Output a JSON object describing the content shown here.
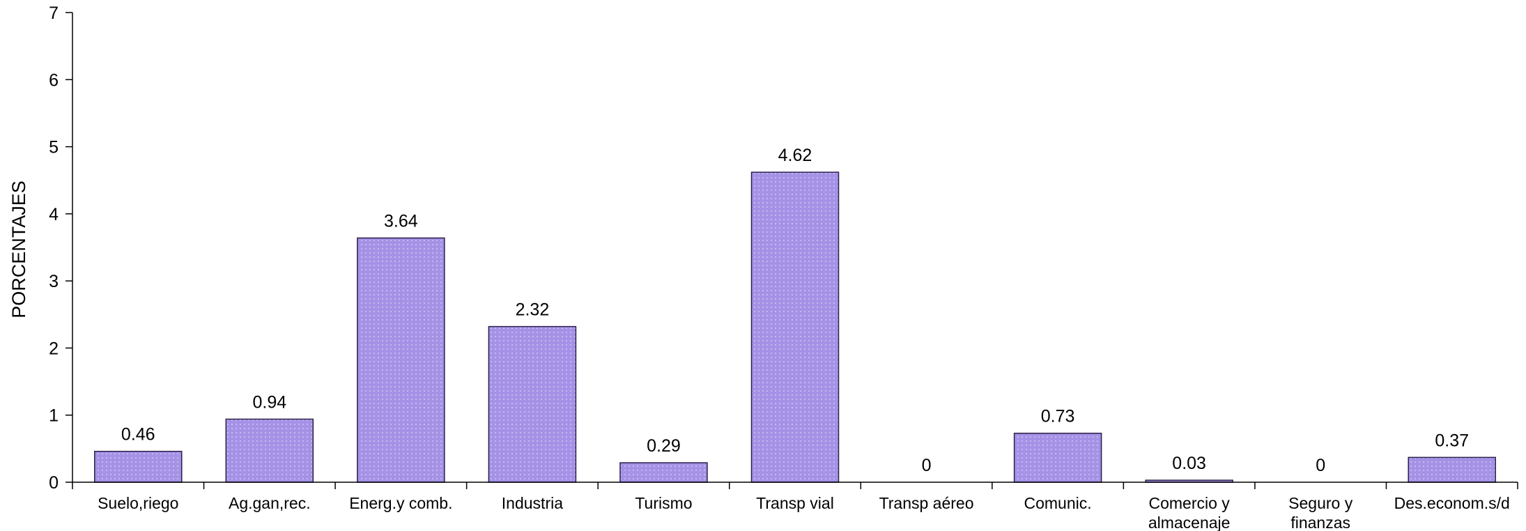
{
  "chart_data": {
    "type": "bar",
    "title": "",
    "xlabel": "",
    "ylabel": "PORCENTAJES",
    "ylim": [
      0,
      7
    ],
    "yticks": [
      "0",
      "1",
      "2",
      "3",
      "4",
      "5",
      "6",
      "7"
    ],
    "grid": false,
    "legend": "none",
    "categories": [
      [
        "Suelo,riego"
      ],
      [
        "Ag.gan,rec."
      ],
      [
        "Energ.y comb."
      ],
      [
        "Industria"
      ],
      [
        "Turismo"
      ],
      [
        "Transp vial"
      ],
      [
        "Transp aéreo"
      ],
      [
        "Comunic."
      ],
      [
        "Comercio y",
        "almacenaje"
      ],
      [
        "Seguro y",
        "finanzas"
      ],
      [
        "Des.econom.s/d"
      ]
    ],
    "values": [
      0.46,
      0.94,
      3.64,
      2.32,
      0.29,
      4.62,
      0,
      0.73,
      0.03,
      0,
      0.37
    ],
    "data_labels": [
      "0.46",
      "0.94",
      "3.64",
      "2.32",
      "0.29",
      "4.62",
      "0",
      "0.73",
      "0.03",
      "0",
      "0.37"
    ],
    "colors": {
      "bar_fill": "#a592e6",
      "bar_pattern_dot": "#c7bcf2",
      "bar_stroke": "#2a1f4a",
      "axis": "#000000"
    }
  }
}
